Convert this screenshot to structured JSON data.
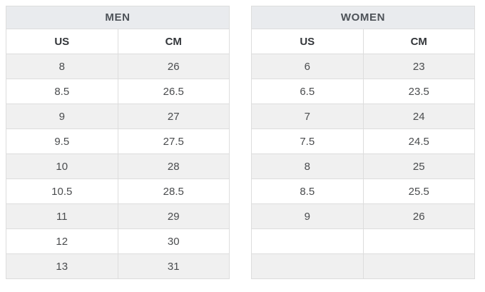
{
  "page": {
    "background_color": "#ffffff"
  },
  "colors": {
    "section_header_bg": "#e9ebee",
    "section_header_text": "#4d5258",
    "column_header_text": "#33363a",
    "cell_text": "#4a4c4e",
    "row_shade_bg": "#f0f0f0",
    "row_plain_bg": "#ffffff",
    "border": "#dddddd"
  },
  "tables": [
    {
      "title": "MEN",
      "columns": [
        "US",
        "CM"
      ],
      "rows": [
        [
          "8",
          "26"
        ],
        [
          "8.5",
          "26.5"
        ],
        [
          "9",
          "27"
        ],
        [
          "9.5",
          "27.5"
        ],
        [
          "10",
          "28"
        ],
        [
          "10.5",
          "28.5"
        ],
        [
          "11",
          "29"
        ],
        [
          "12",
          "30"
        ],
        [
          "13",
          "31"
        ]
      ]
    },
    {
      "title": "WOMEN",
      "columns": [
        "US",
        "CM"
      ],
      "rows": [
        [
          "6",
          "23"
        ],
        [
          "6.5",
          "23.5"
        ],
        [
          "7",
          "24"
        ],
        [
          "7.5",
          "24.5"
        ],
        [
          "8",
          "25"
        ],
        [
          "8.5",
          "25.5"
        ],
        [
          "9",
          "26"
        ],
        [
          "",
          ""
        ],
        [
          "",
          ""
        ]
      ]
    }
  ],
  "chart_data": [
    {
      "type": "table",
      "title": "MEN",
      "columns": [
        "US",
        "CM"
      ],
      "rows": [
        [
          "8",
          "26"
        ],
        [
          "8.5",
          "26.5"
        ],
        [
          "9",
          "27"
        ],
        [
          "9.5",
          "27.5"
        ],
        [
          "10",
          "28"
        ],
        [
          "10.5",
          "28.5"
        ],
        [
          "11",
          "29"
        ],
        [
          "12",
          "30"
        ],
        [
          "13",
          "31"
        ]
      ]
    },
    {
      "type": "table",
      "title": "WOMEN",
      "columns": [
        "US",
        "CM"
      ],
      "rows": [
        [
          "6",
          "23"
        ],
        [
          "6.5",
          "23.5"
        ],
        [
          "7",
          "24"
        ],
        [
          "7.5",
          "24.5"
        ],
        [
          "8",
          "25"
        ],
        [
          "8.5",
          "25.5"
        ],
        [
          "9",
          "26"
        ],
        [
          "",
          ""
        ],
        [
          "",
          ""
        ]
      ]
    }
  ]
}
